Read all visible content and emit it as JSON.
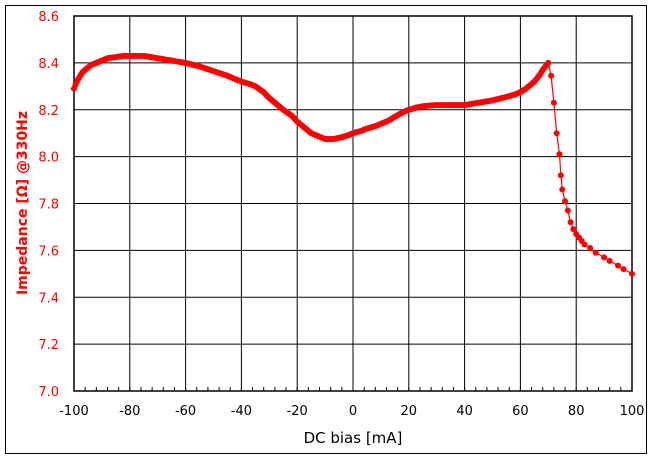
{
  "chart_data": {
    "type": "line",
    "title": "",
    "xlabel": "DC bias [mA]",
    "ylabel": "Impedance [Ω] @330Hz",
    "xlim": [
      -100,
      100
    ],
    "ylim": [
      7.0,
      8.6
    ],
    "x_ticks": [
      "-100",
      "-80",
      "-60",
      "-40",
      "-20",
      "0",
      "20",
      "40",
      "60",
      "80",
      "100"
    ],
    "y_ticks": [
      "7.0",
      "7.2",
      "7.4",
      "7.6",
      "7.8",
      "8.0",
      "8.2",
      "8.4",
      "8.6"
    ],
    "grid": true,
    "legend": null,
    "series": [
      {
        "name": "Impedance",
        "color": "#ff0000",
        "marker": "circle",
        "x": [
          -100,
          -99,
          -98,
          -97,
          -96,
          -95,
          -94,
          -92,
          -90,
          -88,
          -85,
          -82,
          -80,
          -75,
          -70,
          -65,
          -60,
          -55,
          -50,
          -45,
          -40,
          -37,
          -35,
          -32,
          -30,
          -27,
          -25,
          -22,
          -20,
          -17,
          -15,
          -12,
          -10,
          -7,
          -5,
          -2,
          0,
          3,
          5,
          8,
          10,
          13,
          15,
          18,
          20,
          23,
          25,
          28,
          30,
          35,
          40,
          45,
          50,
          55,
          58,
          60,
          62,
          64,
          65,
          66,
          67,
          68,
          69,
          70,
          71,
          72,
          73,
          74,
          74.5,
          75,
          76,
          77,
          78,
          79,
          80,
          81,
          82,
          83,
          85,
          87,
          90,
          92,
          95,
          97,
          100
        ],
        "y": [
          8.29,
          8.32,
          8.34,
          8.36,
          8.37,
          8.38,
          8.39,
          8.4,
          8.41,
          8.42,
          8.425,
          8.43,
          8.43,
          8.43,
          8.42,
          8.41,
          8.4,
          8.385,
          8.365,
          8.345,
          8.32,
          8.31,
          8.3,
          8.275,
          8.25,
          8.22,
          8.2,
          8.175,
          8.15,
          8.12,
          8.1,
          8.085,
          8.075,
          8.075,
          8.08,
          8.09,
          8.1,
          8.11,
          8.12,
          8.13,
          8.14,
          8.155,
          8.17,
          8.19,
          8.2,
          8.21,
          8.215,
          8.218,
          8.22,
          8.22,
          8.22,
          8.23,
          8.24,
          8.255,
          8.265,
          8.275,
          8.29,
          8.31,
          8.32,
          8.335,
          8.35,
          8.37,
          8.385,
          8.4,
          8.345,
          8.23,
          8.1,
          8.01,
          7.92,
          7.86,
          7.81,
          7.77,
          7.72,
          7.69,
          7.67,
          7.655,
          7.64,
          7.625,
          7.61,
          7.59,
          7.57,
          7.555,
          7.535,
          7.52,
          7.5
        ]
      }
    ]
  }
}
